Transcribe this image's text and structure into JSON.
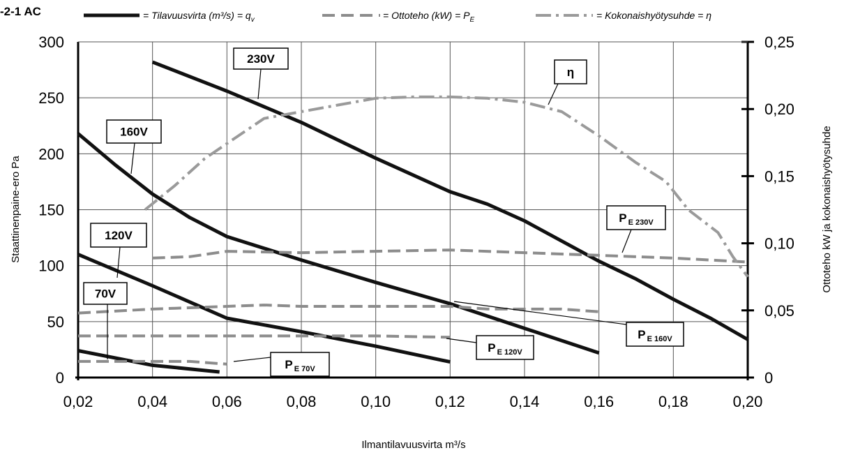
{
  "chart_data": {
    "type": "line",
    "title": "-2-1 AC",
    "legend": [
      {
        "id": "qv",
        "label": "= Tilavuusvirta (m³/s) = q",
        "sub": "v",
        "style": "solid"
      },
      {
        "id": "pe",
        "label": "= Ottoteho (kW) = P",
        "sub": "E",
        "style": "dashed"
      },
      {
        "id": "eta",
        "label": "= Kokonaishyötysuhde = η",
        "sub": "",
        "style": "dashdot"
      }
    ],
    "xlabel": "Ilmantilavuusvirta m³/s",
    "ylabel_left": "Staattinenpaine-ero Pa",
    "ylabel_right": "Ottoteho kW ja kokonaishyötysuhde",
    "xlim": [
      0.02,
      0.2
    ],
    "ylim_left": [
      0,
      300
    ],
    "ylim_right": [
      0,
      0.25
    ],
    "x_ticks": [
      "0,02",
      "0,04",
      "0,06",
      "0,08",
      "0,10",
      "0,12",
      "0,14",
      "0,16",
      "0,18",
      "0,20"
    ],
    "y_ticks_left": [
      "0",
      "50",
      "100",
      "150",
      "200",
      "250",
      "300"
    ],
    "y_ticks_right": [
      "0",
      "0,05",
      "0,10",
      "0,15",
      "0,20",
      "0,25"
    ],
    "grid": true,
    "colors": {
      "pressure": "#111111",
      "power": "#8c8c8c",
      "efficiency": "#9a9a9a",
      "grid": "#555555"
    },
    "series": [
      {
        "name": "230V",
        "kind": "pressure",
        "axis": "left",
        "points": [
          [
            0.04,
            282
          ],
          [
            0.06,
            256
          ],
          [
            0.08,
            228
          ],
          [
            0.1,
            196
          ],
          [
            0.12,
            166
          ],
          [
            0.13,
            155
          ],
          [
            0.14,
            140
          ],
          [
            0.16,
            104
          ],
          [
            0.17,
            88
          ],
          [
            0.18,
            70
          ],
          [
            0.19,
            53
          ],
          [
            0.2,
            34
          ]
        ]
      },
      {
        "name": "160V",
        "kind": "pressure",
        "axis": "left",
        "points": [
          [
            0.02,
            218
          ],
          [
            0.03,
            190
          ],
          [
            0.04,
            164
          ],
          [
            0.05,
            143
          ],
          [
            0.06,
            126
          ],
          [
            0.08,
            105
          ],
          [
            0.1,
            85
          ],
          [
            0.12,
            66
          ],
          [
            0.14,
            44
          ],
          [
            0.16,
            22
          ]
        ]
      },
      {
        "name": "120V",
        "kind": "pressure",
        "axis": "left",
        "points": [
          [
            0.02,
            110
          ],
          [
            0.04,
            82
          ],
          [
            0.06,
            53
          ],
          [
            0.08,
            41
          ],
          [
            0.1,
            28
          ],
          [
            0.12,
            14
          ]
        ]
      },
      {
        "name": "70V",
        "kind": "pressure",
        "axis": "left",
        "points": [
          [
            0.02,
            24
          ],
          [
            0.04,
            11
          ],
          [
            0.058,
            5
          ]
        ]
      },
      {
        "name": "P E 230V",
        "kind": "power",
        "axis": "right",
        "points": [
          [
            0.04,
            0.089
          ],
          [
            0.05,
            0.09
          ],
          [
            0.06,
            0.094
          ],
          [
            0.08,
            0.093
          ],
          [
            0.1,
            0.094
          ],
          [
            0.12,
            0.095
          ],
          [
            0.14,
            0.093
          ],
          [
            0.16,
            0.091
          ],
          [
            0.18,
            0.089
          ],
          [
            0.2,
            0.086
          ]
        ]
      },
      {
        "name": "P E 160V",
        "kind": "power",
        "axis": "right",
        "points": [
          [
            0.02,
            0.048
          ],
          [
            0.04,
            0.051
          ],
          [
            0.06,
            0.053
          ],
          [
            0.07,
            0.054
          ],
          [
            0.08,
            0.053
          ],
          [
            0.1,
            0.053
          ],
          [
            0.12,
            0.053
          ],
          [
            0.13,
            0.051
          ],
          [
            0.15,
            0.051
          ],
          [
            0.16,
            0.049
          ]
        ]
      },
      {
        "name": "P E 120V",
        "kind": "power",
        "axis": "right",
        "points": [
          [
            0.02,
            0.031
          ],
          [
            0.06,
            0.031
          ],
          [
            0.1,
            0.031
          ],
          [
            0.12,
            0.03
          ]
        ]
      },
      {
        "name": "P E 70V",
        "kind": "power",
        "axis": "right",
        "points": [
          [
            0.02,
            0.012
          ],
          [
            0.04,
            0.012
          ],
          [
            0.05,
            0.012
          ],
          [
            0.06,
            0.01
          ]
        ]
      },
      {
        "name": "η",
        "kind": "efficiency",
        "axis": "right",
        "points": [
          [
            0.038,
            0.125
          ],
          [
            0.046,
            0.143
          ],
          [
            0.054,
            0.163
          ],
          [
            0.062,
            0.178
          ],
          [
            0.07,
            0.193
          ],
          [
            0.08,
            0.198
          ],
          [
            0.09,
            0.203
          ],
          [
            0.1,
            0.208
          ],
          [
            0.11,
            0.209
          ],
          [
            0.12,
            0.209
          ],
          [
            0.13,
            0.208
          ],
          [
            0.14,
            0.205
          ],
          [
            0.15,
            0.198
          ],
          [
            0.16,
            0.18
          ],
          [
            0.17,
            0.16
          ],
          [
            0.178,
            0.146
          ],
          [
            0.184,
            0.125
          ],
          [
            0.192,
            0.108
          ],
          [
            0.196,
            0.09
          ],
          [
            0.2,
            0.075
          ]
        ]
      }
    ],
    "annotations": [
      {
        "text": "230V",
        "sub": ""
      },
      {
        "text": "160V",
        "sub": ""
      },
      {
        "text": "120V",
        "sub": ""
      },
      {
        "text": "70V",
        "sub": ""
      },
      {
        "text": "η",
        "sub": ""
      },
      {
        "text": "P",
        "sub": "E 230V"
      },
      {
        "text": "P",
        "sub": "E 160V"
      },
      {
        "text": "P",
        "sub": "E 120V"
      },
      {
        "text": "P",
        "sub": "E 70V"
      }
    ]
  }
}
